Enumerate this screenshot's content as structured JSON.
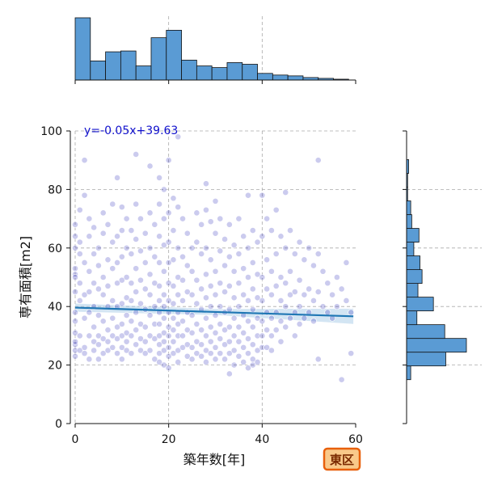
{
  "chart_data": {
    "type": "scatter",
    "title": "",
    "xlabel": "築年数[年]",
    "ylabel": "専有面積[m2]",
    "xlim": [
      0,
      60
    ],
    "ylim": [
      0,
      100
    ],
    "xticks": [
      "0",
      "20",
      "40",
      "60"
    ],
    "yticks": [
      "0",
      "20",
      "40",
      "60",
      "80",
      "100"
    ],
    "grid": true,
    "point_color": "#1010b0",
    "bar_color": "#5a9bd4",
    "regression": {
      "label": "y=-0.05x+39.63",
      "slope": -0.05,
      "intercept": 39.63,
      "color": "#1f77b4",
      "band_color": "#a8cbe8"
    },
    "badge": {
      "label": "東区",
      "fill": "#f9c98a",
      "stroke": "#e8600c"
    },
    "x_hist": {
      "bins": [
        0,
        3.25,
        6.5,
        9.75,
        13,
        16.25,
        19.5,
        22.75,
        26,
        29.25,
        32.5,
        35.75,
        39,
        42.25,
        45.5,
        48.75,
        52,
        55.25,
        58.5
      ],
      "counts": [
        75,
        23,
        34,
        35,
        17,
        51,
        60,
        24,
        17,
        15,
        21,
        19,
        8,
        6,
        5,
        3,
        2,
        1
      ]
    },
    "y_hist": {
      "bins": [
        15,
        19.7,
        24.4,
        29.1,
        33.8,
        38.5,
        43.2,
        47.9,
        52.6,
        57.3,
        62,
        66.7,
        71.4,
        76.1,
        80.8,
        85.5,
        90.2
      ],
      "counts": [
        4,
        38,
        58,
        37,
        10,
        26,
        11,
        15,
        13,
        7,
        12,
        5,
        4,
        1,
        1,
        2
      ]
    },
    "points": [
      [
        0,
        68
      ],
      [
        0,
        64
      ],
      [
        0,
        60
      ],
      [
        0,
        53
      ],
      [
        0,
        51
      ],
      [
        0,
        50
      ],
      [
        0,
        45
      ],
      [
        0,
        38
      ],
      [
        0,
        31
      ],
      [
        0,
        27
      ],
      [
        0,
        25
      ],
      [
        0,
        23
      ],
      [
        0,
        28
      ],
      [
        0,
        35
      ],
      [
        1,
        73
      ],
      [
        1,
        58
      ],
      [
        1,
        48
      ],
      [
        1,
        42
      ],
      [
        1,
        30
      ],
      [
        1,
        25
      ],
      [
        1,
        62
      ],
      [
        2,
        90
      ],
      [
        2,
        78
      ],
      [
        2,
        55
      ],
      [
        2,
        44
      ],
      [
        2,
        36
      ],
      [
        2,
        26
      ],
      [
        2,
        24
      ],
      [
        3,
        70
      ],
      [
        3,
        64
      ],
      [
        3,
        52
      ],
      [
        3,
        45
      ],
      [
        3,
        38
      ],
      [
        3,
        30
      ],
      [
        3,
        22
      ],
      [
        4,
        67
      ],
      [
        4,
        58
      ],
      [
        4,
        48
      ],
      [
        4,
        40
      ],
      [
        4,
        33
      ],
      [
        4,
        28
      ],
      [
        4,
        25
      ],
      [
        5,
        60
      ],
      [
        5,
        54
      ],
      [
        5,
        46
      ],
      [
        5,
        37
      ],
      [
        5,
        30
      ],
      [
        5,
        27
      ],
      [
        5,
        22
      ],
      [
        6,
        72
      ],
      [
        6,
        65
      ],
      [
        6,
        50
      ],
      [
        6,
        44
      ],
      [
        6,
        35
      ],
      [
        6,
        29
      ],
      [
        6,
        24
      ],
      [
        7,
        68
      ],
      [
        7,
        56
      ],
      [
        7,
        47
      ],
      [
        7,
        40
      ],
      [
        7,
        32
      ],
      [
        7,
        28
      ],
      [
        7,
        25
      ],
      [
        8,
        75
      ],
      [
        8,
        62
      ],
      [
        8,
        53
      ],
      [
        8,
        42
      ],
      [
        8,
        36
      ],
      [
        8,
        30
      ],
      [
        8,
        26
      ],
      [
        9,
        84
      ],
      [
        9,
        64
      ],
      [
        9,
        55
      ],
      [
        9,
        48
      ],
      [
        9,
        40
      ],
      [
        9,
        33
      ],
      [
        9,
        29
      ],
      [
        9,
        24
      ],
      [
        10,
        74
      ],
      [
        10,
        66
      ],
      [
        10,
        57
      ],
      [
        10,
        49
      ],
      [
        10,
        41
      ],
      [
        10,
        34
      ],
      [
        10,
        30
      ],
      [
        10,
        26
      ],
      [
        10,
        22
      ],
      [
        11,
        70
      ],
      [
        11,
        60
      ],
      [
        11,
        50
      ],
      [
        11,
        43
      ],
      [
        11,
        37
      ],
      [
        11,
        31
      ],
      [
        11,
        28
      ],
      [
        11,
        25
      ],
      [
        12,
        66
      ],
      [
        12,
        58
      ],
      [
        12,
        48
      ],
      [
        12,
        42
      ],
      [
        12,
        35
      ],
      [
        12,
        30
      ],
      [
        12,
        24
      ],
      [
        13,
        92
      ],
      [
        13,
        75
      ],
      [
        13,
        63
      ],
      [
        13,
        53
      ],
      [
        13,
        45
      ],
      [
        13,
        38
      ],
      [
        13,
        32
      ],
      [
        13,
        27
      ],
      [
        14,
        70
      ],
      [
        14,
        59
      ],
      [
        14,
        49
      ],
      [
        14,
        41
      ],
      [
        14,
        34
      ],
      [
        14,
        29
      ],
      [
        14,
        25
      ],
      [
        15,
        65
      ],
      [
        15,
        55
      ],
      [
        15,
        46
      ],
      [
        15,
        39
      ],
      [
        15,
        33
      ],
      [
        15,
        28
      ],
      [
        15,
        24
      ],
      [
        16,
        88
      ],
      [
        16,
        72
      ],
      [
        16,
        60
      ],
      [
        16,
        51
      ],
      [
        16,
        44
      ],
      [
        16,
        37
      ],
      [
        16,
        30
      ],
      [
        16,
        25
      ],
      [
        17,
        68
      ],
      [
        17,
        57
      ],
      [
        17,
        48
      ],
      [
        17,
        40
      ],
      [
        17,
        34
      ],
      [
        17,
        29
      ],
      [
        17,
        22
      ],
      [
        18,
        84
      ],
      [
        18,
        75
      ],
      [
        18,
        64
      ],
      [
        18,
        55
      ],
      [
        18,
        47
      ],
      [
        18,
        42
      ],
      [
        18,
        38
      ],
      [
        18,
        34
      ],
      [
        18,
        30
      ],
      [
        18,
        27
      ],
      [
        18,
        24
      ],
      [
        18,
        21
      ],
      [
        19,
        80
      ],
      [
        19,
        70
      ],
      [
        19,
        61
      ],
      [
        19,
        52
      ],
      [
        19,
        44
      ],
      [
        19,
        40
      ],
      [
        19,
        36
      ],
      [
        19,
        31
      ],
      [
        19,
        28
      ],
      [
        19,
        25
      ],
      [
        19,
        20
      ],
      [
        20,
        90
      ],
      [
        20,
        72
      ],
      [
        20,
        62
      ],
      [
        20,
        55
      ],
      [
        20,
        48
      ],
      [
        20,
        42
      ],
      [
        20,
        38
      ],
      [
        20,
        33
      ],
      [
        20,
        30
      ],
      [
        20,
        26
      ],
      [
        20,
        23
      ],
      [
        20,
        19
      ],
      [
        21,
        77
      ],
      [
        21,
        66
      ],
      [
        21,
        56
      ],
      [
        21,
        47
      ],
      [
        21,
        41
      ],
      [
        21,
        36
      ],
      [
        21,
        32
      ],
      [
        21,
        28
      ],
      [
        21,
        24
      ],
      [
        22,
        98
      ],
      [
        22,
        74
      ],
      [
        22,
        60
      ],
      [
        22,
        50
      ],
      [
        22,
        44
      ],
      [
        22,
        38
      ],
      [
        22,
        34
      ],
      [
        22,
        30
      ],
      [
        22,
        25
      ],
      [
        22,
        21
      ],
      [
        23,
        70
      ],
      [
        23,
        57
      ],
      [
        23,
        49
      ],
      [
        23,
        42
      ],
      [
        23,
        35
      ],
      [
        23,
        30
      ],
      [
        23,
        26
      ],
      [
        24,
        65
      ],
      [
        24,
        54
      ],
      [
        24,
        45
      ],
      [
        24,
        38
      ],
      [
        24,
        32
      ],
      [
        24,
        27
      ],
      [
        24,
        23
      ],
      [
        25,
        60
      ],
      [
        25,
        52
      ],
      [
        25,
        44
      ],
      [
        25,
        37
      ],
      [
        25,
        31
      ],
      [
        25,
        26
      ],
      [
        25,
        22
      ],
      [
        26,
        72
      ],
      [
        26,
        62
      ],
      [
        26,
        49
      ],
      [
        26,
        41
      ],
      [
        26,
        34
      ],
      [
        26,
        28
      ],
      [
        26,
        24
      ],
      [
        27,
        68
      ],
      [
        27,
        58
      ],
      [
        27,
        46
      ],
      [
        27,
        39
      ],
      [
        27,
        32
      ],
      [
        27,
        27
      ],
      [
        27,
        23
      ],
      [
        28,
        82
      ],
      [
        28,
        73
      ],
      [
        28,
        60
      ],
      [
        28,
        51
      ],
      [
        28,
        43
      ],
      [
        28,
        36
      ],
      [
        28,
        30
      ],
      [
        28,
        25
      ],
      [
        28,
        21
      ],
      [
        29,
        69
      ],
      [
        29,
        56
      ],
      [
        29,
        47
      ],
      [
        29,
        40
      ],
      [
        29,
        33
      ],
      [
        29,
        28
      ],
      [
        29,
        24
      ],
      [
        30,
        76
      ],
      [
        30,
        65
      ],
      [
        30,
        52
      ],
      [
        30,
        44
      ],
      [
        30,
        37
      ],
      [
        30,
        31
      ],
      [
        30,
        26
      ],
      [
        30,
        22
      ],
      [
        31,
        70
      ],
      [
        31,
        59
      ],
      [
        31,
        48
      ],
      [
        31,
        40
      ],
      [
        31,
        34
      ],
      [
        31,
        29
      ],
      [
        31,
        24
      ],
      [
        32,
        63
      ],
      [
        32,
        54
      ],
      [
        32,
        45
      ],
      [
        32,
        38
      ],
      [
        32,
        32
      ],
      [
        32,
        27
      ],
      [
        32,
        22
      ],
      [
        33,
        68
      ],
      [
        33,
        57
      ],
      [
        33,
        47
      ],
      [
        33,
        39
      ],
      [
        33,
        33
      ],
      [
        33,
        28
      ],
      [
        33,
        24
      ],
      [
        33,
        17
      ],
      [
        34,
        61
      ],
      [
        34,
        52
      ],
      [
        34,
        43
      ],
      [
        34,
        36
      ],
      [
        34,
        30
      ],
      [
        34,
        25
      ],
      [
        34,
        20
      ],
      [
        35,
        70
      ],
      [
        35,
        58
      ],
      [
        35,
        48
      ],
      [
        35,
        40
      ],
      [
        35,
        33
      ],
      [
        35,
        28
      ],
      [
        35,
        23
      ],
      [
        36,
        64
      ],
      [
        36,
        53
      ],
      [
        36,
        44
      ],
      [
        36,
        37
      ],
      [
        36,
        31
      ],
      [
        36,
        26
      ],
      [
        36,
        21
      ],
      [
        37,
        78
      ],
      [
        37,
        60
      ],
      [
        37,
        50
      ],
      [
        37,
        42
      ],
      [
        37,
        35
      ],
      [
        37,
        29
      ],
      [
        37,
        24
      ],
      [
        37,
        19
      ],
      [
        38,
        66
      ],
      [
        38,
        55
      ],
      [
        38,
        46
      ],
      [
        38,
        39
      ],
      [
        38,
        33
      ],
      [
        38,
        27
      ],
      [
        38,
        22
      ],
      [
        38,
        20
      ],
      [
        39,
        62
      ],
      [
        39,
        51
      ],
      [
        39,
        43
      ],
      [
        39,
        36
      ],
      [
        39,
        30
      ],
      [
        39,
        25
      ],
      [
        39,
        21
      ],
      [
        40,
        78
      ],
      [
        40,
        64
      ],
      [
        40,
        50
      ],
      [
        40,
        42
      ],
      [
        40,
        35
      ],
      [
        40,
        30
      ],
      [
        40,
        26
      ],
      [
        41,
        70
      ],
      [
        41,
        56
      ],
      [
        41,
        46
      ],
      [
        41,
        38
      ],
      [
        41,
        32
      ],
      [
        41,
        26
      ],
      [
        42,
        66
      ],
      [
        42,
        52
      ],
      [
        42,
        44
      ],
      [
        42,
        36
      ],
      [
        42,
        30
      ],
      [
        42,
        25
      ],
      [
        43,
        73
      ],
      [
        43,
        58
      ],
      [
        43,
        47
      ],
      [
        43,
        38
      ],
      [
        43,
        32
      ],
      [
        44,
        64
      ],
      [
        44,
        50
      ],
      [
        44,
        42
      ],
      [
        44,
        35
      ],
      [
        44,
        28
      ],
      [
        45,
        79
      ],
      [
        45,
        60
      ],
      [
        45,
        48
      ],
      [
        45,
        40
      ],
      [
        45,
        33
      ],
      [
        46,
        66
      ],
      [
        46,
        52
      ],
      [
        46,
        44
      ],
      [
        46,
        36
      ],
      [
        47,
        58
      ],
      [
        47,
        45
      ],
      [
        47,
        38
      ],
      [
        47,
        30
      ],
      [
        48,
        62
      ],
      [
        48,
        49
      ],
      [
        48,
        40
      ],
      [
        48,
        34
      ],
      [
        49,
        56
      ],
      [
        49,
        44
      ],
      [
        49,
        36
      ],
      [
        50,
        60
      ],
      [
        50,
        46
      ],
      [
        50,
        38
      ],
      [
        51,
        54
      ],
      [
        51,
        42
      ],
      [
        51,
        35
      ],
      [
        52,
        90
      ],
      [
        52,
        58
      ],
      [
        52,
        45
      ],
      [
        52,
        22
      ],
      [
        53,
        52
      ],
      [
        53,
        40
      ],
      [
        54,
        48
      ],
      [
        54,
        38
      ],
      [
        55,
        44
      ],
      [
        55,
        36
      ],
      [
        56,
        50
      ],
      [
        56,
        40
      ],
      [
        57,
        46
      ],
      [
        57,
        15
      ],
      [
        58,
        42
      ],
      [
        58,
        55
      ],
      [
        59,
        38
      ],
      [
        59,
        24
      ]
    ]
  }
}
